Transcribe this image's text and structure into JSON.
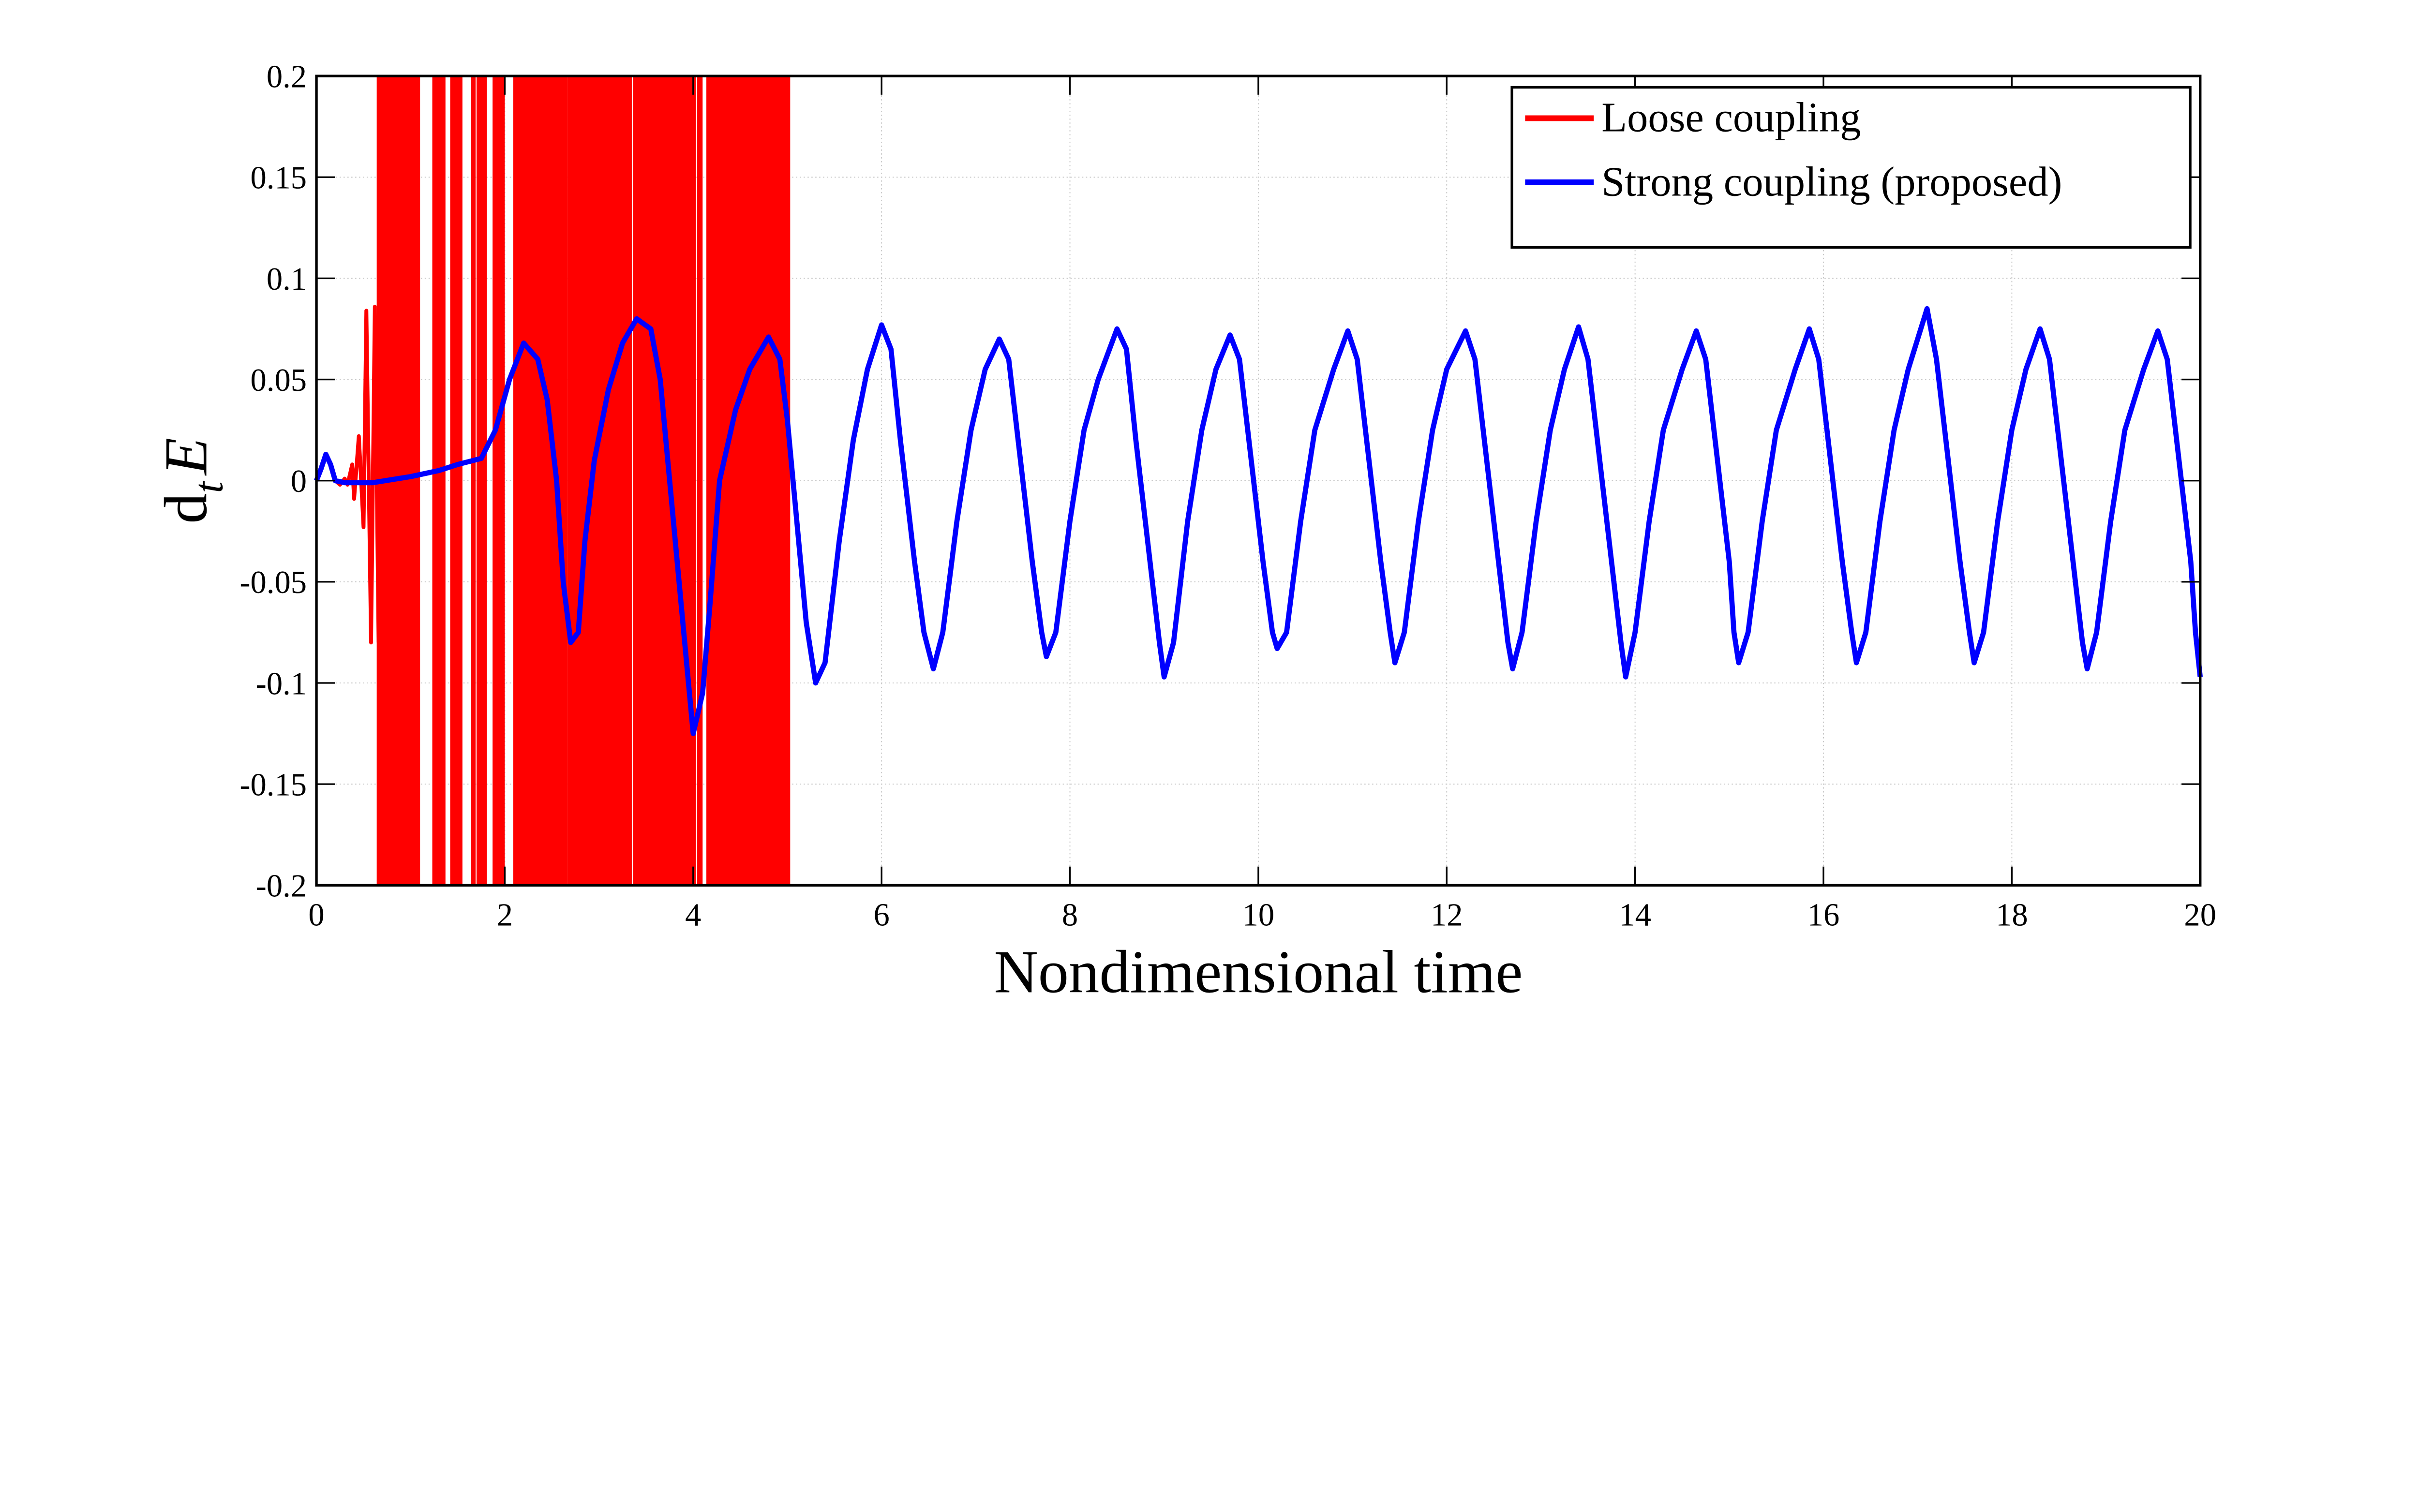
{
  "chart_data": {
    "type": "line",
    "xlabel": "Nondimensional time",
    "ylabel": {
      "main": "d",
      "sub": "t",
      "var": "E"
    },
    "xlim": [
      0,
      20
    ],
    "ylim": [
      -0.2,
      0.2
    ],
    "grid": true,
    "legend_position": "top-right",
    "x_ticks": [
      "0",
      "2",
      "4",
      "6",
      "8",
      "10",
      "12",
      "14",
      "16",
      "18",
      "20"
    ],
    "y_ticks": [
      "0.2",
      "0.15",
      "0.1",
      "0.05",
      "0",
      "-0.05",
      "-0.1",
      "-0.15",
      "-0.2"
    ],
    "series": [
      {
        "name": "Loose coupling",
        "color": "#ff0000",
        "points": [
          [
            0,
            0
          ],
          [
            0.05,
            0.006
          ],
          [
            0.1,
            0.013
          ],
          [
            0.15,
            0.008
          ],
          [
            0.2,
            0.0
          ],
          [
            0.25,
            -0.002
          ],
          [
            0.3,
            0.001
          ],
          [
            0.33,
            -0.002
          ],
          [
            0.38,
            0.008
          ],
          [
            0.4,
            -0.009
          ],
          [
            0.45,
            0.022
          ],
          [
            0.5,
            -0.023
          ],
          [
            0.53,
            0.084
          ],
          [
            0.58,
            -0.08
          ],
          [
            0.62,
            0.086
          ],
          [
            0.66,
            -0.08
          ]
        ],
        "saturated_intervals": [
          [
            0.64,
            1.1
          ],
          [
            1.23,
            1.37
          ],
          [
            1.42,
            1.55
          ],
          [
            1.64,
            1.69
          ],
          [
            1.7,
            1.81
          ],
          [
            1.87,
            2.0
          ],
          [
            2.09,
            2.67
          ],
          [
            2.67,
            3.35
          ],
          [
            3.36,
            4.03
          ],
          [
            4.04,
            4.1
          ],
          [
            4.14,
            5.03
          ]
        ]
      },
      {
        "name": "Strong coupling (proposed)",
        "color": "#0000ff",
        "points": [
          [
            0,
            0
          ],
          [
            0.05,
            0.006
          ],
          [
            0.1,
            0.013
          ],
          [
            0.15,
            0.008
          ],
          [
            0.2,
            0.0
          ],
          [
            0.3,
            -0.001
          ],
          [
            0.6,
            -0.001
          ],
          [
            1.0,
            0.002
          ],
          [
            1.3,
            0.005
          ],
          [
            1.5,
            0.008
          ],
          [
            1.75,
            0.011
          ],
          [
            1.9,
            0.025
          ],
          [
            2.05,
            0.05
          ],
          [
            2.2,
            0.068
          ],
          [
            2.35,
            0.06
          ],
          [
            2.45,
            0.04
          ],
          [
            2.55,
            0.0
          ],
          [
            2.62,
            -0.05
          ],
          [
            2.7,
            -0.08
          ],
          [
            2.78,
            -0.075
          ],
          [
            2.85,
            -0.03
          ],
          [
            2.95,
            0.01
          ],
          [
            3.1,
            0.045
          ],
          [
            3.25,
            0.068
          ],
          [
            3.4,
            0.08
          ],
          [
            3.55,
            0.075
          ],
          [
            3.65,
            0.05
          ],
          [
            3.75,
            0.0
          ],
          [
            3.85,
            -0.05
          ],
          [
            3.95,
            -0.1
          ],
          [
            4.0,
            -0.125
          ],
          [
            4.1,
            -0.105
          ],
          [
            4.18,
            -0.06
          ],
          [
            4.28,
            0.0
          ],
          [
            4.45,
            0.035
          ],
          [
            4.6,
            0.055
          ],
          [
            4.8,
            0.071
          ],
          [
            4.92,
            0.06
          ],
          [
            5.0,
            0.03
          ],
          [
            5.1,
            -0.02
          ],
          [
            5.2,
            -0.07
          ],
          [
            5.3,
            -0.1
          ],
          [
            5.4,
            -0.09
          ],
          [
            5.55,
            -0.03
          ],
          [
            5.7,
            0.02
          ],
          [
            5.85,
            0.055
          ],
          [
            6.0,
            0.077
          ],
          [
            6.1,
            0.065
          ],
          [
            6.2,
            0.02
          ],
          [
            6.35,
            -0.04
          ],
          [
            6.45,
            -0.075
          ],
          [
            6.55,
            -0.093
          ],
          [
            6.65,
            -0.075
          ],
          [
            6.8,
            -0.02
          ],
          [
            6.95,
            0.025
          ],
          [
            7.1,
            0.055
          ],
          [
            7.25,
            0.07
          ],
          [
            7.35,
            0.06
          ],
          [
            7.45,
            0.02
          ],
          [
            7.6,
            -0.04
          ],
          [
            7.7,
            -0.075
          ],
          [
            7.75,
            -0.087
          ],
          [
            7.85,
            -0.075
          ],
          [
            8.0,
            -0.02
          ],
          [
            8.15,
            0.025
          ],
          [
            8.3,
            0.05
          ],
          [
            8.5,
            0.075
          ],
          [
            8.6,
            0.065
          ],
          [
            8.7,
            0.02
          ],
          [
            8.85,
            -0.04
          ],
          [
            8.95,
            -0.08
          ],
          [
            9.0,
            -0.097
          ],
          [
            9.1,
            -0.08
          ],
          [
            9.25,
            -0.02
          ],
          [
            9.4,
            0.025
          ],
          [
            9.55,
            0.055
          ],
          [
            9.7,
            0.072
          ],
          [
            9.8,
            0.06
          ],
          [
            9.9,
            0.02
          ],
          [
            10.05,
            -0.04
          ],
          [
            10.15,
            -0.075
          ],
          [
            10.2,
            -0.083
          ],
          [
            10.3,
            -0.075
          ],
          [
            10.45,
            -0.02
          ],
          [
            10.6,
            0.025
          ],
          [
            10.8,
            0.055
          ],
          [
            10.95,
            0.074
          ],
          [
            11.05,
            0.06
          ],
          [
            11.15,
            0.02
          ],
          [
            11.3,
            -0.04
          ],
          [
            11.4,
            -0.075
          ],
          [
            11.45,
            -0.09
          ],
          [
            11.55,
            -0.075
          ],
          [
            11.7,
            -0.02
          ],
          [
            11.85,
            0.025
          ],
          [
            12.0,
            0.055
          ],
          [
            12.2,
            0.074
          ],
          [
            12.3,
            0.06
          ],
          [
            12.4,
            0.02
          ],
          [
            12.55,
            -0.04
          ],
          [
            12.65,
            -0.08
          ],
          [
            12.7,
            -0.093
          ],
          [
            12.8,
            -0.075
          ],
          [
            12.95,
            -0.02
          ],
          [
            13.1,
            0.025
          ],
          [
            13.25,
            0.055
          ],
          [
            13.4,
            0.076
          ],
          [
            13.5,
            0.06
          ],
          [
            13.6,
            0.02
          ],
          [
            13.75,
            -0.04
          ],
          [
            13.85,
            -0.08
          ],
          [
            13.9,
            -0.097
          ],
          [
            14.0,
            -0.075
          ],
          [
            14.15,
            -0.02
          ],
          [
            14.3,
            0.025
          ],
          [
            14.5,
            0.055
          ],
          [
            14.65,
            0.074
          ],
          [
            14.75,
            0.06
          ],
          [
            14.85,
            0.02
          ],
          [
            15.0,
            -0.04
          ],
          [
            15.05,
            -0.075
          ],
          [
            15.1,
            -0.09
          ],
          [
            15.2,
            -0.075
          ],
          [
            15.35,
            -0.02
          ],
          [
            15.5,
            0.025
          ],
          [
            15.7,
            0.055
          ],
          [
            15.85,
            0.075
          ],
          [
            15.95,
            0.06
          ],
          [
            16.05,
            0.02
          ],
          [
            16.2,
            -0.04
          ],
          [
            16.3,
            -0.075
          ],
          [
            16.35,
            -0.09
          ],
          [
            16.45,
            -0.075
          ],
          [
            16.6,
            -0.02
          ],
          [
            16.75,
            0.025
          ],
          [
            16.9,
            0.055
          ],
          [
            17.1,
            0.085
          ],
          [
            17.2,
            0.06
          ],
          [
            17.3,
            0.02
          ],
          [
            17.45,
            -0.04
          ],
          [
            17.55,
            -0.075
          ],
          [
            17.6,
            -0.09
          ],
          [
            17.7,
            -0.075
          ],
          [
            17.85,
            -0.02
          ],
          [
            18.0,
            0.025
          ],
          [
            18.15,
            0.055
          ],
          [
            18.3,
            0.075
          ],
          [
            18.4,
            0.06
          ],
          [
            18.5,
            0.02
          ],
          [
            18.65,
            -0.04
          ],
          [
            18.75,
            -0.08
          ],
          [
            18.8,
            -0.093
          ],
          [
            18.9,
            -0.075
          ],
          [
            19.05,
            -0.02
          ],
          [
            19.2,
            0.025
          ],
          [
            19.4,
            0.055
          ],
          [
            19.55,
            0.074
          ],
          [
            19.65,
            0.06
          ],
          [
            19.75,
            0.02
          ],
          [
            19.9,
            -0.04
          ],
          [
            19.95,
            -0.075
          ],
          [
            20,
            -0.097
          ]
        ]
      }
    ]
  }
}
